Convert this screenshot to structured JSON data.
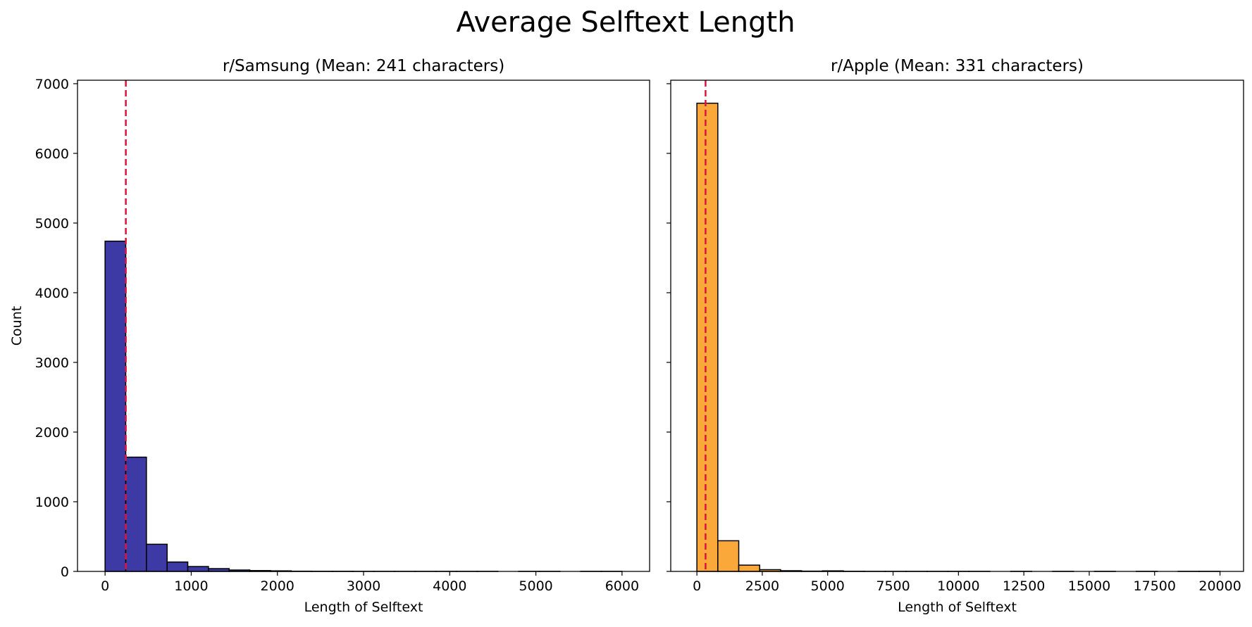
{
  "figure": {
    "suptitle": "Average Selftext Length",
    "mean_line_color": "#dc143c"
  },
  "chart_data": [
    {
      "type": "bar",
      "title": "r/Samsung (Mean: 241 characters)",
      "xlabel": "Length of Selftext",
      "ylabel": "Count",
      "bar_color": "#3d3aa6",
      "edge_color": "#000000",
      "xlim": [
        -320,
        6320
      ],
      "ylim": [
        0,
        7050
      ],
      "xticks": [
        0,
        1000,
        2000,
        3000,
        4000,
        5000,
        6000
      ],
      "yticks": [
        0,
        1000,
        2000,
        3000,
        4000,
        5000,
        6000,
        7000
      ],
      "mean": 241,
      "bins": [
        {
          "start": 0,
          "end": 240,
          "count": 4740
        },
        {
          "start": 240,
          "end": 480,
          "count": 1640
        },
        {
          "start": 480,
          "end": 720,
          "count": 390
        },
        {
          "start": 720,
          "end": 960,
          "count": 135
        },
        {
          "start": 960,
          "end": 1200,
          "count": 70
        },
        {
          "start": 1200,
          "end": 1440,
          "count": 40
        },
        {
          "start": 1440,
          "end": 1680,
          "count": 20
        },
        {
          "start": 1680,
          "end": 1920,
          "count": 12
        },
        {
          "start": 1920,
          "end": 2160,
          "count": 8
        },
        {
          "start": 2160,
          "end": 2400,
          "count": 3
        },
        {
          "start": 2400,
          "end": 2640,
          "count": 2
        },
        {
          "start": 2640,
          "end": 2880,
          "count": 2
        },
        {
          "start": 2880,
          "end": 3120,
          "count": 1
        },
        {
          "start": 3120,
          "end": 3360,
          "count": 1
        },
        {
          "start": 3360,
          "end": 3600,
          "count": 1
        },
        {
          "start": 3600,
          "end": 3840,
          "count": 1
        },
        {
          "start": 3840,
          "end": 4080,
          "count": 1
        },
        {
          "start": 4080,
          "end": 4320,
          "count": 1
        },
        {
          "start": 4320,
          "end": 4560,
          "count": 1
        },
        {
          "start": 4560,
          "end": 4800,
          "count": 0
        },
        {
          "start": 4800,
          "end": 5040,
          "count": 1
        },
        {
          "start": 5040,
          "end": 5280,
          "count": 1
        },
        {
          "start": 5280,
          "end": 5520,
          "count": 0
        },
        {
          "start": 5520,
          "end": 5760,
          "count": 1
        },
        {
          "start": 5760,
          "end": 6000,
          "count": 1
        }
      ]
    },
    {
      "type": "bar",
      "title": "r/Apple (Mean: 331 characters)",
      "xlabel": "Length of Selftext",
      "ylabel": "",
      "bar_color": "#fba83b",
      "edge_color": "#000000",
      "xlim": [
        -1000,
        20900
      ],
      "ylim": [
        0,
        7050
      ],
      "xticks": [
        0,
        2500,
        5000,
        7500,
        10000,
        12500,
        15000,
        17500,
        20000
      ],
      "yticks": [
        0,
        1000,
        2000,
        3000,
        4000,
        5000,
        6000,
        7000
      ],
      "mean": 331,
      "bins": [
        {
          "start": 0,
          "end": 800,
          "count": 6720
        },
        {
          "start": 800,
          "end": 1600,
          "count": 440
        },
        {
          "start": 1600,
          "end": 2400,
          "count": 90
        },
        {
          "start": 2400,
          "end": 3200,
          "count": 25
        },
        {
          "start": 3200,
          "end": 4000,
          "count": 10
        },
        {
          "start": 4000,
          "end": 4800,
          "count": 4
        },
        {
          "start": 4800,
          "end": 5600,
          "count": 8
        },
        {
          "start": 5600,
          "end": 6400,
          "count": 2
        },
        {
          "start": 6400,
          "end": 7200,
          "count": 1
        },
        {
          "start": 7200,
          "end": 8000,
          "count": 1
        },
        {
          "start": 8000,
          "end": 8800,
          "count": 1
        },
        {
          "start": 8800,
          "end": 9600,
          "count": 1
        },
        {
          "start": 9600,
          "end": 10400,
          "count": 1
        },
        {
          "start": 10400,
          "end": 11200,
          "count": 1
        },
        {
          "start": 11200,
          "end": 12000,
          "count": 0
        },
        {
          "start": 12000,
          "end": 12800,
          "count": 1
        },
        {
          "start": 12800,
          "end": 13600,
          "count": 0
        },
        {
          "start": 13600,
          "end": 14400,
          "count": 1
        },
        {
          "start": 14400,
          "end": 15200,
          "count": 0
        },
        {
          "start": 15200,
          "end": 16000,
          "count": 1
        },
        {
          "start": 16000,
          "end": 16800,
          "count": 0
        },
        {
          "start": 16800,
          "end": 17600,
          "count": 1
        },
        {
          "start": 17600,
          "end": 18400,
          "count": 0
        },
        {
          "start": 18400,
          "end": 19200,
          "count": 1
        },
        {
          "start": 19200,
          "end": 20000,
          "count": 1
        }
      ]
    }
  ]
}
